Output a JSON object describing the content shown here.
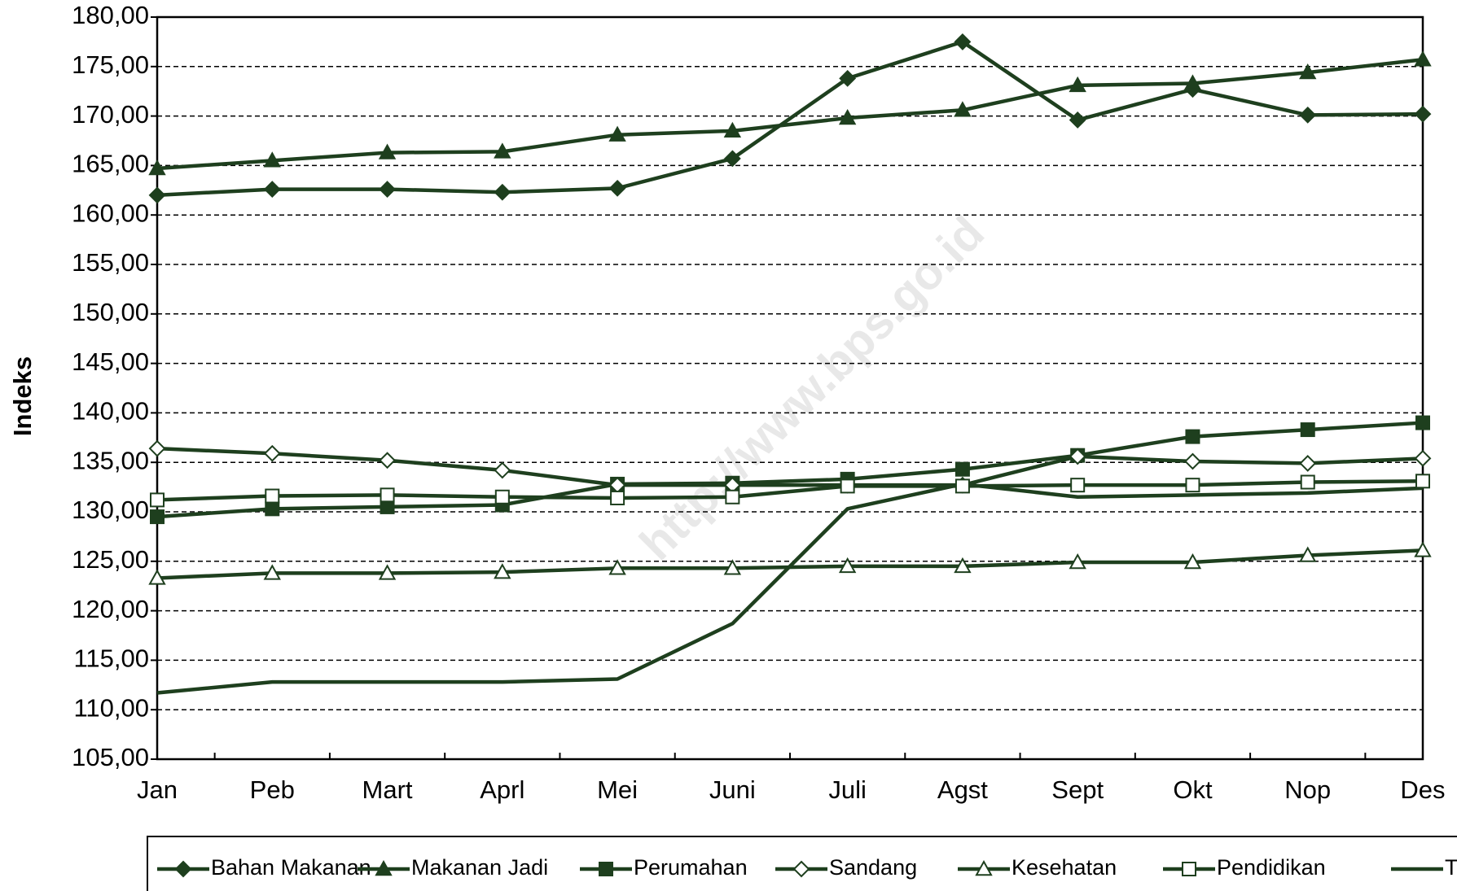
{
  "chart_data": {
    "type": "line",
    "y_label": "Indeks",
    "watermark": "http://www.bps.go.id",
    "categories": [
      "Jan",
      "Peb",
      "Mart",
      "Aprl",
      "Mei",
      "Juni",
      "Juli",
      "Agst",
      "Sept",
      "Okt",
      "Nop",
      "Des"
    ],
    "ylim": [
      105,
      180
    ],
    "yticks": [
      {
        "value": 105,
        "label": "105,00"
      },
      {
        "value": 110,
        "label": "110,00"
      },
      {
        "value": 115,
        "label": "115,00"
      },
      {
        "value": 120,
        "label": "120,00"
      },
      {
        "value": 125,
        "label": "125,00"
      },
      {
        "value": 130,
        "label": "130,00"
      },
      {
        "value": 135,
        "label": "135,00"
      },
      {
        "value": 140,
        "label": "140,00"
      },
      {
        "value": 145,
        "label": "145,00"
      },
      {
        "value": 150,
        "label": "150,00"
      },
      {
        "value": 155,
        "label": "155,00"
      },
      {
        "value": 160,
        "label": "160,00"
      },
      {
        "value": 165,
        "label": "165,00"
      },
      {
        "value": 170,
        "label": "170,00"
      },
      {
        "value": 175,
        "label": "175,00"
      },
      {
        "value": 180,
        "label": "180,00"
      }
    ],
    "grid": true,
    "legend": "bottom",
    "series": [
      {
        "name": "Bahan Makanan",
        "color": "#1e3f1e",
        "marker": "diamond-filled",
        "values": [
          162.0,
          162.6,
          162.6,
          162.3,
          162.7,
          165.7,
          173.8,
          177.5,
          169.6,
          172.7,
          170.1,
          170.2
        ]
      },
      {
        "name": "Makanan Jadi",
        "color": "#1e3f1e",
        "marker": "triangle-filled",
        "values": [
          164.7,
          165.5,
          166.3,
          166.4,
          168.1,
          168.5,
          169.8,
          170.6,
          173.1,
          173.3,
          174.4,
          175.7
        ]
      },
      {
        "name": "Perumahan",
        "color": "#1e3f1e",
        "marker": "square-filled",
        "values": [
          129.5,
          130.3,
          130.5,
          130.7,
          132.8,
          132.9,
          133.3,
          134.3,
          135.7,
          137.6,
          138.3,
          139.0
        ]
      },
      {
        "name": "Sandang",
        "color": "#1e3f1e",
        "marker": "diamond-open",
        "values": [
          136.4,
          135.9,
          135.2,
          134.2,
          132.7,
          132.7,
          132.7,
          132.7,
          135.6,
          135.1,
          134.9,
          135.4
        ]
      },
      {
        "name": "Kesehatan",
        "color": "#1e3f1e",
        "marker": "triangle-open",
        "values": [
          123.3,
          123.8,
          123.8,
          123.9,
          124.3,
          124.3,
          124.5,
          124.5,
          124.9,
          124.9,
          125.6,
          126.1
        ]
      },
      {
        "name": "Pendidikan",
        "color": "#1e3f1e",
        "marker": "square-open",
        "values": [
          131.2,
          131.6,
          131.7,
          131.5,
          131.4,
          131.5,
          132.6,
          132.6,
          132.7,
          132.7,
          133.0,
          133.1
        ]
      },
      {
        "name": "Transpor",
        "color": "#1e3f1e",
        "marker": "none",
        "values": [
          111.7,
          112.8,
          112.8,
          112.8,
          113.1,
          118.7,
          130.3,
          132.8,
          131.5,
          131.7,
          131.9,
          132.4
        ]
      }
    ]
  }
}
